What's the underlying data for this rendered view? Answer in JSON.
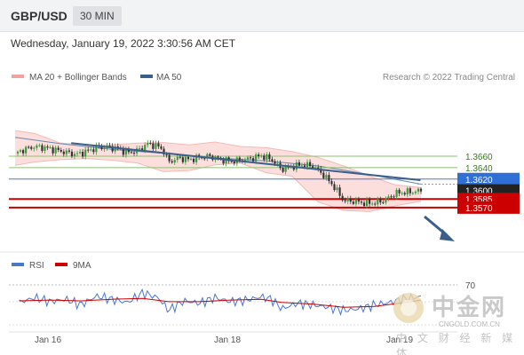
{
  "header": {
    "pair": "GBP/USD",
    "timeframe": "30 MIN"
  },
  "datetime": "Wednesday, January 19, 2022 3:30:56 AM CET",
  "legend": {
    "bollinger": "MA 20 + Bollinger Bands",
    "ma50": "MA 50",
    "credit": "Research © 2022 Trading Central"
  },
  "colors": {
    "bollinger": "#f2a0a0",
    "ma50": "#3a5f8a",
    "resistance": "#4a78c8",
    "support": "#cc0000",
    "level_green": "#8cc070",
    "trendline": "#3a5f8a",
    "rsi": "#4a78c8",
    "rsi_ma": "#cc0000"
  },
  "chart_data": [
    {
      "type": "candlestick",
      "x_ticks": [
        "Jan 16",
        "Jan 18",
        "Jan 19"
      ],
      "y_range": [
        1.3555,
        1.372
      ],
      "levels": [
        {
          "value": 1.366,
          "label": "1.3660",
          "kind": "green"
        },
        {
          "value": 1.364,
          "label": "1.3640",
          "kind": "green"
        },
        {
          "value": 1.362,
          "label": "1.3620",
          "kind": "resistance"
        },
        {
          "value": 1.36,
          "label": "1.3600",
          "kind": "current"
        },
        {
          "value": 1.3585,
          "label": "1.3585",
          "kind": "support"
        },
        {
          "value": 1.357,
          "label": "1.3570",
          "kind": "support"
        }
      ],
      "trendline": {
        "from": [
          0.121,
          1.3683
        ],
        "to": [
          0.799,
          1.3618
        ]
      },
      "ma50": [
        [
          0.012,
          1.3693
        ],
        [
          0.1,
          1.3682
        ],
        [
          0.2,
          1.3672
        ],
        [
          0.3,
          1.3665
        ],
        [
          0.4,
          1.3657
        ],
        [
          0.5,
          1.3652
        ],
        [
          0.6,
          1.3643
        ],
        [
          0.7,
          1.3628
        ],
        [
          0.8,
          1.3611
        ]
      ],
      "bb_upper": [
        [
          0.012,
          1.3705
        ],
        [
          0.05,
          1.37
        ],
        [
          0.1,
          1.3683
        ],
        [
          0.15,
          1.368
        ],
        [
          0.2,
          1.368
        ],
        [
          0.25,
          1.3683
        ],
        [
          0.3,
          1.3684
        ],
        [
          0.35,
          1.368
        ],
        [
          0.4,
          1.3685
        ],
        [
          0.45,
          1.3677
        ],
        [
          0.5,
          1.3675
        ],
        [
          0.55,
          1.3668
        ],
        [
          0.6,
          1.3658
        ],
        [
          0.65,
          1.3643
        ],
        [
          0.7,
          1.3625
        ],
        [
          0.75,
          1.361
        ],
        [
          0.8,
          1.3605
        ]
      ],
      "bb_lower": [
        [
          0.012,
          1.3644
        ],
        [
          0.05,
          1.365
        ],
        [
          0.1,
          1.3654
        ],
        [
          0.15,
          1.3656
        ],
        [
          0.2,
          1.3653
        ],
        [
          0.25,
          1.3648
        ],
        [
          0.3,
          1.3633
        ],
        [
          0.35,
          1.3635
        ],
        [
          0.4,
          1.3645
        ],
        [
          0.45,
          1.3648
        ],
        [
          0.5,
          1.3631
        ],
        [
          0.55,
          1.3625
        ],
        [
          0.6,
          1.358
        ],
        [
          0.65,
          1.3565
        ],
        [
          0.7,
          1.3563
        ],
        [
          0.75,
          1.3573
        ],
        [
          0.8,
          1.3581
        ]
      ],
      "close": [
        [
          0.012,
          1.3665
        ],
        [
          0.03,
          1.3672
        ],
        [
          0.05,
          1.3677
        ],
        [
          0.07,
          1.3675
        ],
        [
          0.09,
          1.3671
        ],
        [
          0.11,
          1.3667
        ],
        [
          0.13,
          1.3663
        ],
        [
          0.15,
          1.3668
        ],
        [
          0.17,
          1.3675
        ],
        [
          0.19,
          1.3676
        ],
        [
          0.21,
          1.3674
        ],
        [
          0.23,
          1.3666
        ],
        [
          0.25,
          1.367
        ],
        [
          0.27,
          1.3682
        ],
        [
          0.29,
          1.3677
        ],
        [
          0.3,
          1.367
        ],
        [
          0.31,
          1.365
        ],
        [
          0.33,
          1.3657
        ],
        [
          0.35,
          1.3654
        ],
        [
          0.37,
          1.3658
        ],
        [
          0.39,
          1.366
        ],
        [
          0.41,
          1.3655
        ],
        [
          0.43,
          1.3651
        ],
        [
          0.45,
          1.3653
        ],
        [
          0.47,
          1.3656
        ],
        [
          0.49,
          1.3661
        ],
        [
          0.51,
          1.3654
        ],
        [
          0.53,
          1.3637
        ],
        [
          0.55,
          1.3642
        ],
        [
          0.57,
          1.3645
        ],
        [
          0.59,
          1.3643
        ],
        [
          0.61,
          1.3628
        ],
        [
          0.63,
          1.3608
        ],
        [
          0.65,
          1.3582
        ],
        [
          0.67,
          1.3581
        ],
        [
          0.69,
          1.3578
        ],
        [
          0.71,
          1.3578
        ],
        [
          0.73,
          1.3583
        ],
        [
          0.75,
          1.3595
        ],
        [
          0.77,
          1.3597
        ],
        [
          0.79,
          1.3598
        ],
        [
          0.8,
          1.36
        ]
      ]
    },
    {
      "type": "line",
      "title": "",
      "legend": [
        "RSI",
        "9MA"
      ],
      "y_ticks": [
        70
      ],
      "y_range": [
        15,
        85
      ],
      "rsi": [
        [
          0.02,
          48
        ],
        [
          0.05,
          54
        ],
        [
          0.08,
          49
        ],
        [
          0.11,
          52
        ],
        [
          0.14,
          45
        ],
        [
          0.17,
          56
        ],
        [
          0.2,
          52
        ],
        [
          0.23,
          48
        ],
        [
          0.26,
          60
        ],
        [
          0.29,
          54
        ],
        [
          0.31,
          38
        ],
        [
          0.34,
          50
        ],
        [
          0.37,
          47
        ],
        [
          0.4,
          54
        ],
        [
          0.43,
          49
        ],
        [
          0.46,
          51
        ],
        [
          0.49,
          55
        ],
        [
          0.51,
          52
        ],
        [
          0.53,
          40
        ],
        [
          0.56,
          47
        ],
        [
          0.59,
          45
        ],
        [
          0.62,
          42
        ],
        [
          0.65,
          38
        ],
        [
          0.68,
          40
        ],
        [
          0.71,
          45
        ],
        [
          0.74,
          48
        ],
        [
          0.77,
          53
        ],
        [
          0.8,
          55
        ]
      ],
      "rsi_ma": [
        [
          0.02,
          50
        ],
        [
          0.08,
          51
        ],
        [
          0.14,
          50
        ],
        [
          0.2,
          52
        ],
        [
          0.26,
          53
        ],
        [
          0.31,
          49
        ],
        [
          0.37,
          49
        ],
        [
          0.43,
          51
        ],
        [
          0.49,
          52
        ],
        [
          0.53,
          48
        ],
        [
          0.59,
          46
        ],
        [
          0.65,
          42
        ],
        [
          0.71,
          43
        ],
        [
          0.77,
          48
        ],
        [
          0.8,
          51
        ]
      ]
    }
  ],
  "watermark": {
    "cn": "中金网",
    "site": "CNGOLD.COM.CN",
    "sub": "中 文 财 经 新 媒 体"
  }
}
